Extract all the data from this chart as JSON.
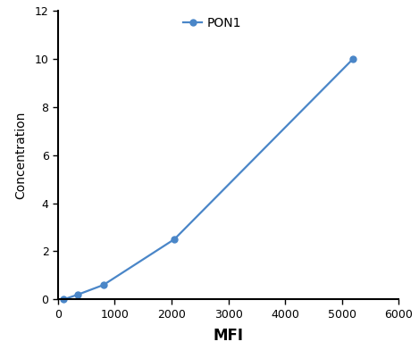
{
  "x": [
    100,
    350,
    800,
    2050,
    5200
  ],
  "y": [
    0.0,
    0.2,
    0.6,
    2.5,
    10.0
  ],
  "line_color": "#4a86c8",
  "marker": "o",
  "marker_size": 5,
  "legend_label": "PON1",
  "xlabel": "MFI",
  "ylabel": "Concentration",
  "xlim": [
    0,
    6000
  ],
  "ylim": [
    0,
    12
  ],
  "xticks": [
    0,
    1000,
    2000,
    3000,
    4000,
    5000,
    6000
  ],
  "yticks": [
    0,
    2,
    4,
    6,
    8,
    10,
    12
  ],
  "xlabel_fontsize": 12,
  "ylabel_fontsize": 10,
  "tick_fontsize": 9,
  "legend_fontsize": 10,
  "background_color": "#ffffff",
  "spine_color": "#000000",
  "tick_color": "#000000"
}
